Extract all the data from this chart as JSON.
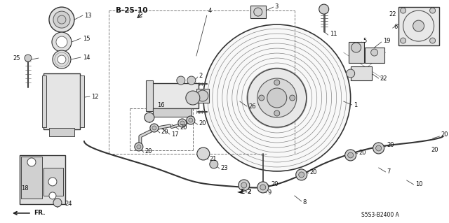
{
  "bg_color": "#ffffff",
  "fig_width": 6.4,
  "fig_height": 3.19,
  "dpi": 100,
  "part_number_label": "S5S3-B2400 A",
  "ref_label": "B-25-10",
  "fr_label": "FR.",
  "e2_label": "◄E-2",
  "line_color": "#222222",
  "text_color": "#111111",
  "label_fontsize": 6.0
}
